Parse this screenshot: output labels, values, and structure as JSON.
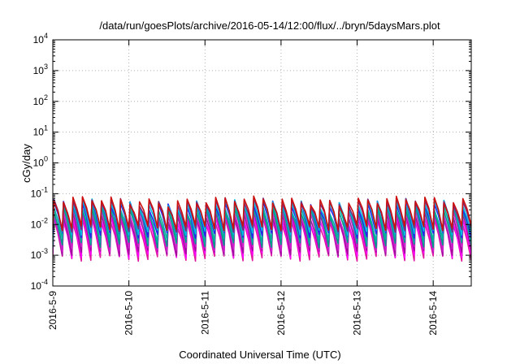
{
  "chart_data": {
    "type": "line",
    "title": "/data/run/goesPlots/archive/2016-05-14/12:00/flux/../bryn/5daysMars.plot",
    "xlabel": "Coordinated Universal Time (UTC)",
    "ylabel": "cGy/day",
    "yscale": "log",
    "ylim": [
      0.0001,
      10000
    ],
    "xlim": [
      "2016-5-9 00:00",
      "2016-5-14 12:00"
    ],
    "x_ticks": [
      "2016-5-9",
      "2016-5-10",
      "2016-5-11",
      "2016-5-12",
      "2016-5-13",
      "2016-5-14"
    ],
    "y_ticks": [
      {
        "base": "10",
        "exp": "-4",
        "value": 0.0001
      },
      {
        "base": "10",
        "exp": "-3",
        "value": 0.001
      },
      {
        "base": "10",
        "exp": "-2",
        "value": 0.01
      },
      {
        "base": "10",
        "exp": "-1",
        "value": 0.1
      },
      {
        "base": "10",
        "exp": "0",
        "value": 1
      },
      {
        "base": "10",
        "exp": "1",
        "value": 10
      },
      {
        "base": "10",
        "exp": "2",
        "value": 100
      },
      {
        "base": "10",
        "exp": "3",
        "value": 1000
      },
      {
        "base": "10",
        "exp": "4",
        "value": 10000
      }
    ],
    "grid": true,
    "legend": "none",
    "sawtooth_period_hours": 3,
    "series": [
      {
        "color": "#e0189e",
        "peak": 0.012,
        "trough": 0.0008
      },
      {
        "color": "#ff00ff",
        "peak": 0.015,
        "trough": 0.001
      },
      {
        "color": "#a0109a",
        "peak": 0.02,
        "trough": 0.0012
      },
      {
        "color": "#cc22cc",
        "peak": 0.025,
        "trough": 0.0016
      },
      {
        "color": "#009a88",
        "peak": 0.03,
        "trough": 0.0022
      },
      {
        "color": "#00b0a0",
        "peak": 0.035,
        "trough": 0.003
      },
      {
        "color": "#2222ee",
        "peak": 0.045,
        "trough": 0.0045
      },
      {
        "color": "#00c0e0",
        "peak": 0.05,
        "trough": 0.0055
      },
      {
        "color": "#7a2a7a",
        "peak": 0.055,
        "trough": 0.007
      },
      {
        "color": "#cc1010",
        "peak": 0.06,
        "trough": 0.008
      }
    ]
  }
}
